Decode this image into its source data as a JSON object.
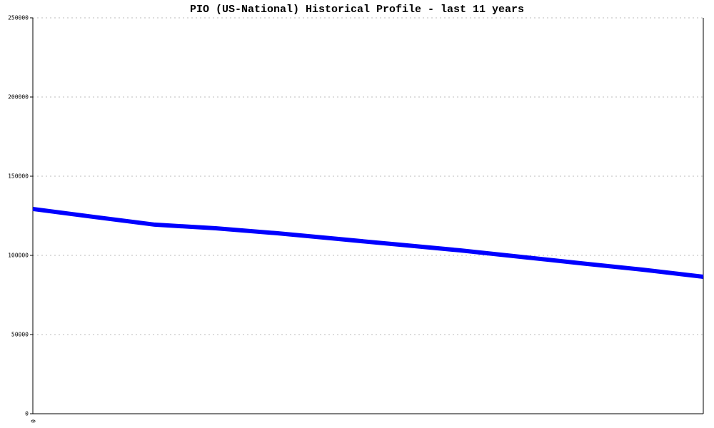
{
  "chart_data": {
    "type": "line",
    "title": "PIO (US-National) Historical Profile - last 11 years",
    "categories": [
      "0",
      null,
      null,
      null,
      null,
      null,
      null,
      null,
      null,
      null,
      null,
      null
    ],
    "series": [
      {
        "name": "PIO",
        "color": "#0000ff",
        "values": [
          129300,
          124300,
          119400,
          117100,
          114000,
          110400,
          106800,
          103200,
          99100,
          95000,
          91000,
          86500
        ]
      }
    ],
    "ylim": [
      0,
      250000
    ],
    "yticks": [
      0,
      50000,
      100000,
      150000,
      200000,
      250000
    ],
    "grid": true
  }
}
